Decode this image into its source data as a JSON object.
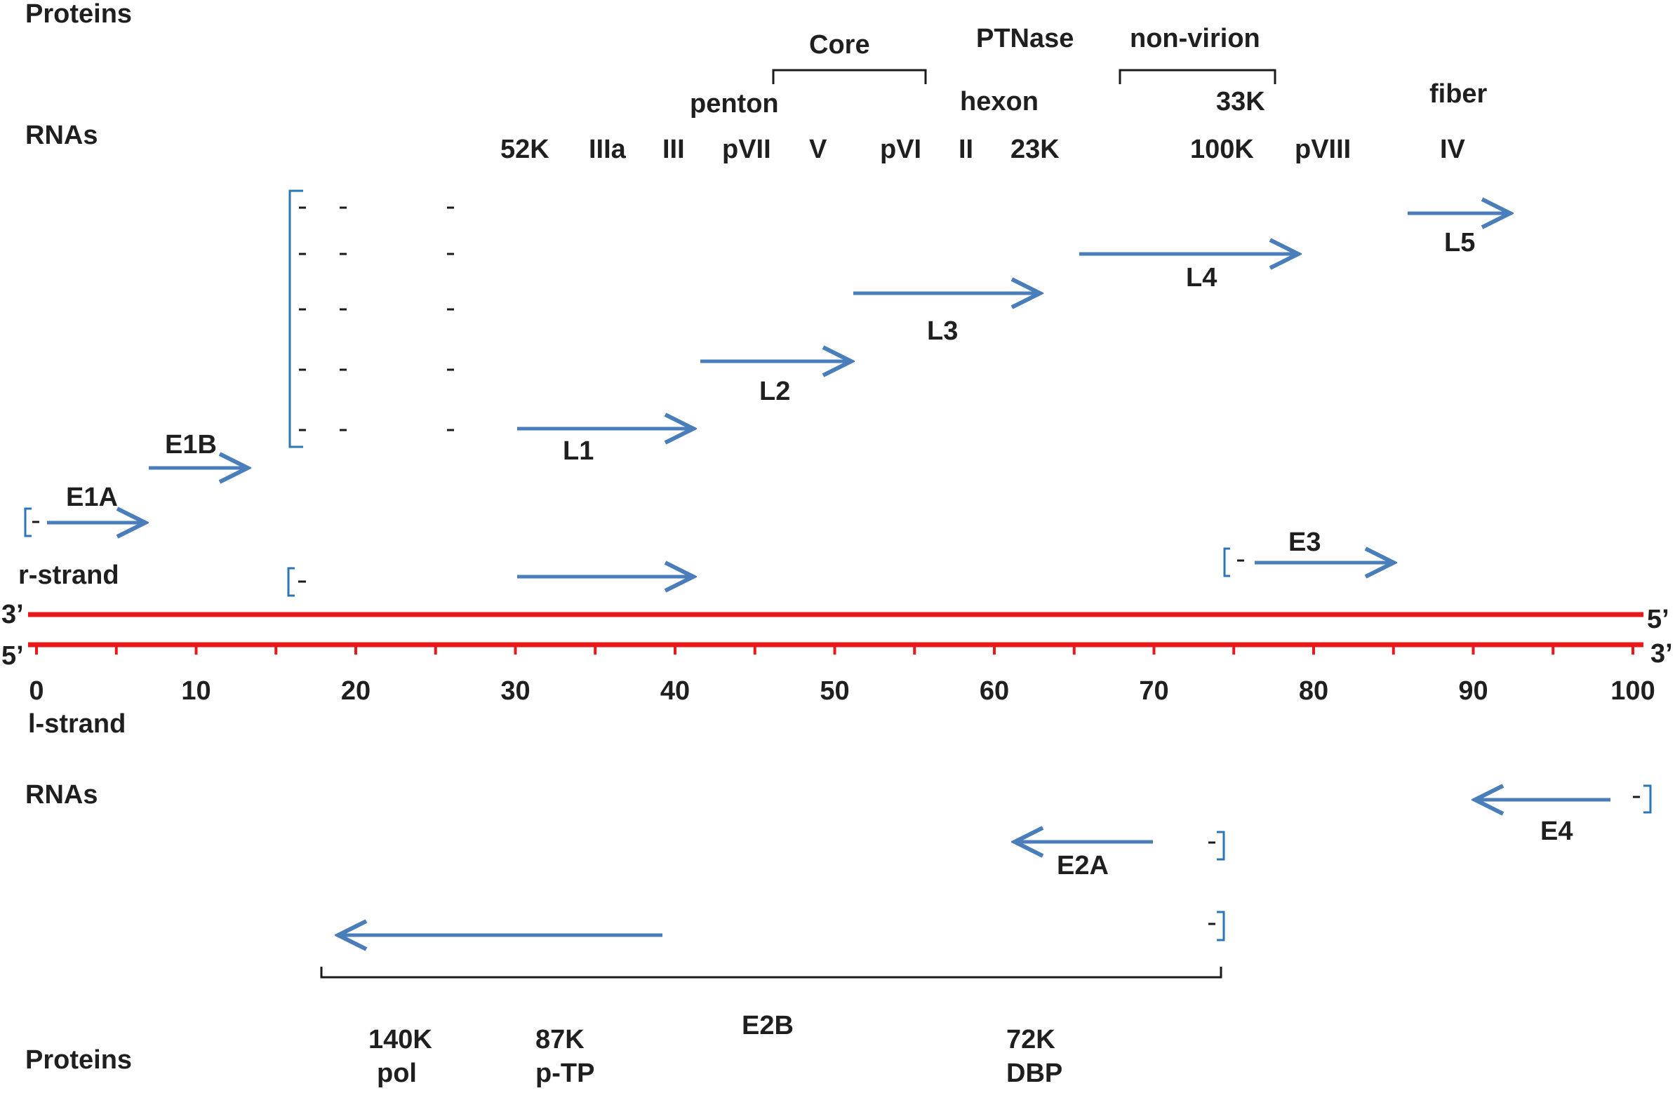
{
  "labels": {
    "proteins_top": "Proteins",
    "rnas_top": "RNAs",
    "r_strand": "r-strand",
    "l_strand": "l-strand",
    "rnas_bottom": "RNAs",
    "proteins_bottom": "Proteins",
    "end_3_left": "3’",
    "end_5_left": "5’",
    "end_5_right": "5’",
    "end_3_right": "3’"
  },
  "groups": {
    "core": "Core",
    "ptnase": "PTNase",
    "non_virion": "non-virion",
    "penton": "penton",
    "hexon": "hexon",
    "k33": "33K",
    "fiber": "fiber"
  },
  "proteins_row": [
    "52K",
    "IIIa",
    "III",
    "pVII",
    "V",
    "pVI",
    "II",
    "23K",
    "100K",
    "pVIII",
    "IV"
  ],
  "rna_labels": {
    "L1": "L1",
    "L2": "L2",
    "L3": "L3",
    "L4": "L4",
    "L5": "L5",
    "E1A": "E1A",
    "E1B": "E1B",
    "E3": "E3",
    "E2A": "E2A",
    "E4": "E4",
    "E2B": "E2B"
  },
  "e2b_proteins": {
    "p140_a": "140K",
    "p140_b": "pol",
    "p87_a": "87K",
    "p87_b": "p-TP",
    "p72_a": "72K",
    "p72_b": "DBP"
  },
  "axis": {
    "ticks": [
      0,
      10,
      20,
      30,
      40,
      50,
      60,
      70,
      80,
      90,
      100
    ],
    "minor": [
      5,
      15,
      25,
      35,
      45,
      55,
      65,
      75,
      85,
      95
    ],
    "range": [
      0,
      100
    ]
  },
  "colors": {
    "strand": "#e8191a",
    "arrow": "#4a7ebb",
    "bracket": "#2e75b6"
  }
}
